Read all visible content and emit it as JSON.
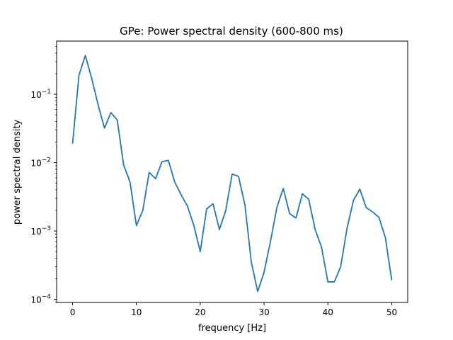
{
  "chart_data": {
    "type": "line",
    "title": "GPe: Power spectral density (600-800 ms)",
    "xlabel": "frequency [Hz]",
    "ylabel": "power spectral density",
    "xlim": [
      -2.5,
      52.5
    ],
    "ylim": [
      9e-05,
      0.6
    ],
    "yscale": "log",
    "grid": false,
    "x_ticks": [
      0,
      10,
      20,
      30,
      40,
      50
    ],
    "x_tick_labels": [
      "0",
      "10",
      "20",
      "30",
      "40",
      "50"
    ],
    "y_ticks": [
      0.0001,
      0.001,
      0.01,
      0.1
    ],
    "y_tick_labels": [
      {
        "base": "10",
        "exp": "−4"
      },
      {
        "base": "10",
        "exp": "−3"
      },
      {
        "base": "10",
        "exp": "−2"
      },
      {
        "base": "10",
        "exp": "−1"
      }
    ],
    "series": [
      {
        "color": "#1f77b4",
        "x": [
          0,
          1,
          2,
          3,
          4,
          5,
          6,
          7,
          8,
          9,
          10,
          11,
          12,
          13,
          14,
          15,
          16,
          17,
          18,
          19,
          20,
          21,
          22,
          23,
          24,
          25,
          26,
          27,
          28,
          29,
          30,
          31,
          32,
          33,
          34,
          35,
          36,
          37,
          38,
          39,
          40,
          41,
          42,
          43,
          44,
          45,
          46,
          47,
          48,
          49,
          50
        ],
        "y": [
          0.019,
          0.19,
          0.37,
          0.17,
          0.07,
          0.032,
          0.054,
          0.042,
          0.0092,
          0.0052,
          0.0012,
          0.002,
          0.0072,
          0.0058,
          0.0103,
          0.0108,
          0.0052,
          0.0034,
          0.0023,
          0.0012,
          0.0005,
          0.0021,
          0.0025,
          0.00105,
          0.002,
          0.0068,
          0.0063,
          0.0024,
          0.00035,
          0.00013,
          0.00025,
          0.0007,
          0.0022,
          0.0042,
          0.0018,
          0.00155,
          0.0035,
          0.0029,
          0.00105,
          0.00058,
          0.00018,
          0.00018,
          0.0003,
          0.0011,
          0.0028,
          0.0041,
          0.0022,
          0.0019,
          0.00158,
          0.0008,
          0.00019
        ]
      }
    ]
  }
}
